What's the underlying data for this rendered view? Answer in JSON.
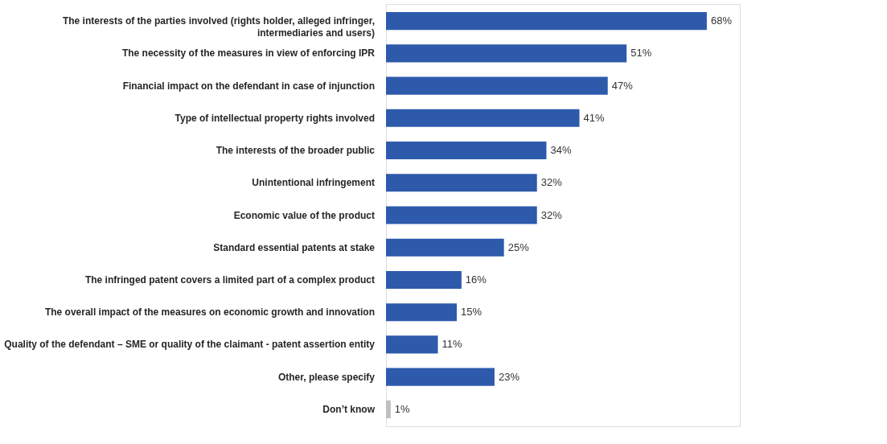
{
  "chart_data": {
    "type": "bar",
    "orientation": "horizontal",
    "categories": [
      "The interests of the parties involved (rights holder, alleged infringer, intermediaries and users)",
      "The necessity of the measures in view of enforcing IPR",
      "Financial impact on the defendant in case of injunction",
      "Type of intellectual property rights involved",
      "The interests of the broader public",
      "Unintentional infringement",
      "Economic value of the product",
      "Standard essential patents at stake",
      "The infringed patent covers a limited part of a complex product",
      "The overall impact of the measures on economic growth and innovation",
      "Quality of the defendant – SME or quality of the claimant - patent assertion entity",
      "Other, please specify",
      "Don’t know"
    ],
    "values": [
      68,
      51,
      47,
      41,
      34,
      32,
      32,
      25,
      16,
      15,
      11,
      23,
      1
    ],
    "colors": [
      "#2e5aac",
      "#2e5aac",
      "#2e5aac",
      "#2e5aac",
      "#2e5aac",
      "#2e5aac",
      "#2e5aac",
      "#2e5aac",
      "#2e5aac",
      "#2e5aac",
      "#2e5aac",
      "#2e5aac",
      "#bfbfbf"
    ],
    "value_labels": [
      "68%",
      "51%",
      "47%",
      "41%",
      "34%",
      "32%",
      "32%",
      "25%",
      "16%",
      "15%",
      "11%",
      "23%",
      "1%"
    ],
    "xlim": [
      0,
      75
    ]
  }
}
